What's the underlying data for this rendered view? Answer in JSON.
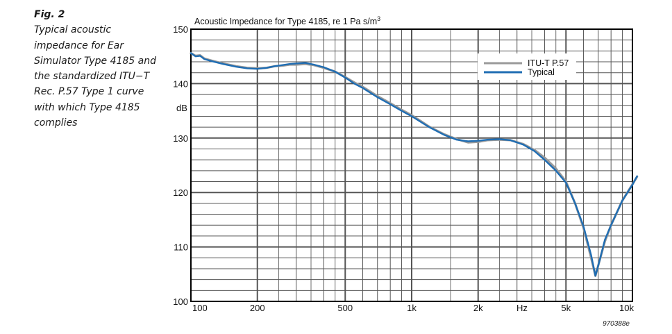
{
  "caption": {
    "label": "Fig. 2",
    "text": "Typical acoustic impedance for Ear Simulator Type 4185 and the standardized ITU−T Rec. P.57 Type 1 curve with which Type 4185 complies"
  },
  "figure_code": "970388e",
  "colors": {
    "itu": "#9a9a9a",
    "typical": "#1f6db3",
    "grid": "#555555",
    "frame": "#000000"
  },
  "chart_data": {
    "type": "line",
    "title_main": "Acoustic Impedance for Type 4185, re 1 Pa s/m",
    "title_sup": "3",
    "ylabel": "dB",
    "xlabel": "Hz",
    "xscale": "log",
    "xlim": [
      100,
      10000
    ],
    "ylim": [
      100,
      150
    ],
    "grid": true,
    "legend_position": "top-right",
    "x_tick_labels": [
      {
        "value": 100,
        "label": "100"
      },
      {
        "value": 200,
        "label": "200"
      },
      {
        "value": 500,
        "label": "500"
      },
      {
        "value": 1000,
        "label": "1k"
      },
      {
        "value": 2000,
        "label": "2k"
      },
      {
        "value": 5000,
        "label": "5k"
      },
      {
        "value": 10000,
        "label": "10k"
      }
    ],
    "y_tick_labels": [
      {
        "value": 100,
        "label": "100"
      },
      {
        "value": 110,
        "label": "110"
      },
      {
        "value": 120,
        "label": "120"
      },
      {
        "value": 130,
        "label": "130"
      },
      {
        "value": 140,
        "label": "140"
      },
      {
        "value": 150,
        "label": "150"
      }
    ],
    "series": [
      {
        "name": "ITU-T P.57",
        "points": [
          [
            100,
            145.6
          ],
          [
            105,
            145.1
          ],
          [
            110,
            145.2
          ],
          [
            115,
            144.6
          ],
          [
            125,
            144.2
          ],
          [
            140,
            143.7
          ],
          [
            160,
            143.2
          ],
          [
            180,
            142.9
          ],
          [
            200,
            142.8
          ],
          [
            220,
            142.9
          ],
          [
            240,
            143.2
          ],
          [
            260,
            143.3
          ],
          [
            280,
            143.5
          ],
          [
            300,
            143.5
          ],
          [
            330,
            143.6
          ],
          [
            360,
            143.4
          ],
          [
            400,
            142.9
          ],
          [
            450,
            142.2
          ],
          [
            500,
            141.2
          ],
          [
            550,
            140.2
          ],
          [
            600,
            139.4
          ],
          [
            700,
            137.7
          ],
          [
            800,
            136.4
          ],
          [
            900,
            135.2
          ],
          [
            1000,
            134.2
          ],
          [
            1200,
            132.1
          ],
          [
            1400,
            130.7
          ],
          [
            1600,
            129.8
          ],
          [
            1800,
            129.2
          ],
          [
            2000,
            129.3
          ],
          [
            2200,
            129.6
          ],
          [
            2500,
            129.7
          ],
          [
            2800,
            129.6
          ],
          [
            3200,
            128.9
          ],
          [
            3600,
            127.8
          ],
          [
            4000,
            126.4
          ],
          [
            4500,
            124.4
          ],
          [
            5000,
            122.0
          ],
          [
            5500,
            118.0
          ],
          [
            6000,
            113.5
          ],
          [
            6500,
            108.0
          ],
          [
            6800,
            104.7
          ],
          [
            7100,
            107.5
          ],
          [
            7500,
            111.0
          ],
          [
            8000,
            114.0
          ],
          [
            9000,
            118.5
          ],
          [
            10000,
            121.5
          ],
          [
            10500,
            122.9
          ]
        ]
      },
      {
        "name": "Typical",
        "points": [
          [
            100,
            145.6
          ],
          [
            105,
            145.0
          ],
          [
            110,
            145.1
          ],
          [
            115,
            144.5
          ],
          [
            125,
            144.1
          ],
          [
            140,
            143.6
          ],
          [
            160,
            143.1
          ],
          [
            180,
            142.8
          ],
          [
            200,
            142.7
          ],
          [
            220,
            142.9
          ],
          [
            240,
            143.2
          ],
          [
            260,
            143.4
          ],
          [
            280,
            143.6
          ],
          [
            300,
            143.7
          ],
          [
            330,
            143.8
          ],
          [
            360,
            143.5
          ],
          [
            400,
            143.0
          ],
          [
            450,
            142.2
          ],
          [
            500,
            141.1
          ],
          [
            550,
            140.0
          ],
          [
            600,
            139.2
          ],
          [
            700,
            137.5
          ],
          [
            800,
            136.2
          ],
          [
            900,
            135.0
          ],
          [
            1000,
            134.0
          ],
          [
            1200,
            132.0
          ],
          [
            1400,
            130.6
          ],
          [
            1600,
            129.7
          ],
          [
            1800,
            129.4
          ],
          [
            2000,
            129.5
          ],
          [
            2200,
            129.7
          ],
          [
            2500,
            129.8
          ],
          [
            2800,
            129.6
          ],
          [
            3200,
            128.8
          ],
          [
            3600,
            127.6
          ],
          [
            4000,
            126.0
          ],
          [
            4500,
            124.0
          ],
          [
            5000,
            121.8
          ],
          [
            5500,
            118.0
          ],
          [
            6000,
            113.8
          ],
          [
            6500,
            108.5
          ],
          [
            6800,
            104.7
          ],
          [
            7100,
            107.5
          ],
          [
            7500,
            111.3
          ],
          [
            8000,
            114.0
          ],
          [
            9000,
            118.5
          ],
          [
            10000,
            121.4
          ],
          [
            10500,
            123.0
          ]
        ]
      }
    ]
  }
}
